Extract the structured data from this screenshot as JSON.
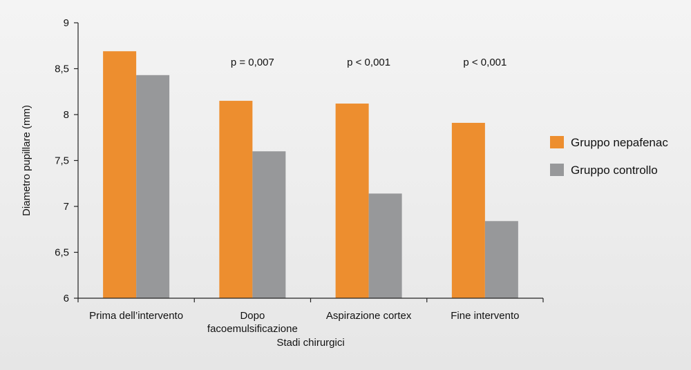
{
  "chart_data": {
    "type": "bar",
    "title": "",
    "xlabel": "Stadi chirurgici",
    "ylabel": "Diametro pupillare (mm)",
    "ylim": [
      6,
      9
    ],
    "yticks": [
      6,
      6.5,
      7,
      7.5,
      8,
      8.5,
      9
    ],
    "ytick_labels": [
      "6",
      "6,5",
      "7",
      "7,5",
      "8",
      "8,5",
      "9"
    ],
    "categories": [
      [
        "Prima dell’intervento"
      ],
      [
        "Dopo",
        "facoemulsificazione"
      ],
      [
        "Aspirazione cortex"
      ],
      [
        "Fine intervento"
      ]
    ],
    "series": [
      {
        "name": "Gruppo nepafenac",
        "color": "#ED8E2F",
        "values": [
          8.69,
          8.15,
          8.12,
          7.91
        ]
      },
      {
        "name": "Gruppo controllo",
        "color": "#97989A",
        "values": [
          8.43,
          7.6,
          7.14,
          6.84
        ]
      }
    ],
    "annotations": [
      "",
      "p = 0,007",
      "p < 0,001",
      "p < 0,001"
    ],
    "legend_position": "right",
    "grid": false
  }
}
